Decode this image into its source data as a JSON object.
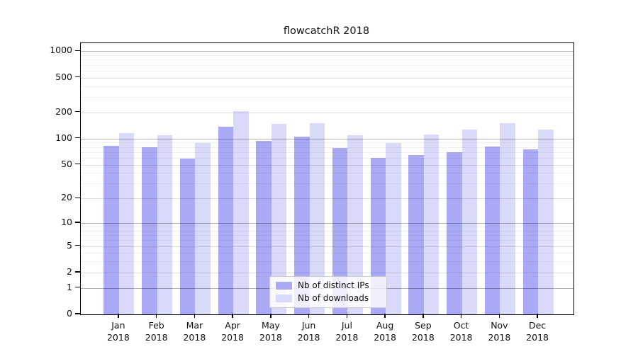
{
  "title": "flowcatchR 2018",
  "chart_data": {
    "type": "bar",
    "title": "flowcatchR 2018",
    "categories": [
      "Jan",
      "Feb",
      "Mar",
      "Apr",
      "May",
      "Jun",
      "Jul",
      "Aug",
      "Sep",
      "Oct",
      "Nov",
      "Dec"
    ],
    "year_label": "2018",
    "series": [
      {
        "name": "Nb of distinct IPs",
        "color": "#a9a9f5",
        "values": [
          83,
          80,
          59,
          136,
          94,
          105,
          78,
          60,
          65,
          70,
          81,
          75
        ]
      },
      {
        "name": "Nb of downloads",
        "color": "#d9d9fa",
        "values": [
          115,
          110,
          89,
          208,
          148,
          151,
          110,
          89,
          112,
          127,
          150,
          128
        ]
      }
    ],
    "xlabel": "",
    "ylabel": "",
    "y_scale": "log1p",
    "y_ticks": [
      0,
      1,
      2,
      5,
      10,
      20,
      50,
      100,
      200,
      500,
      1000
    ],
    "ylim": [
      0,
      1230
    ],
    "grid": "on",
    "legend_position": "inside-bottom-center"
  },
  "colors": {
    "bar_distinct_ips": "#a9a9f5",
    "bar_downloads": "#d9d9fa",
    "axis": "#000000",
    "grid_major": "#b3b3b3",
    "grid_minor": "#f0f0f0",
    "legend_border": "#cccccc"
  }
}
